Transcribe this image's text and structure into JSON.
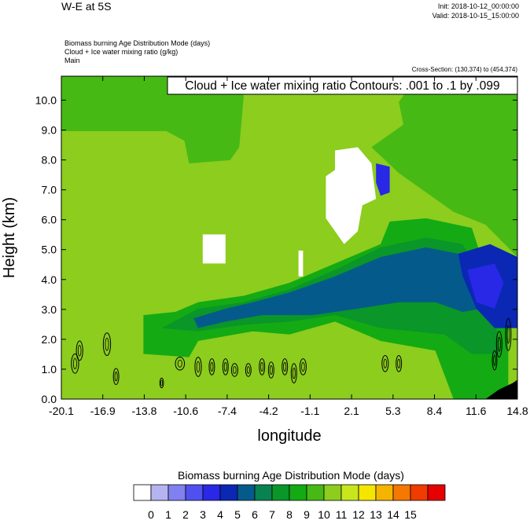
{
  "header": {
    "title": "W-E at 5S",
    "init": "Init: 2018-10-12_00:00:00",
    "valid": "Valid: 2018-10-15_15:00:00",
    "field_1": "Biomass burning Age Distribution Mode   (days)",
    "field_2": "Cloud + Ice water mixing ratio   (g/kg)",
    "field_3": "Main",
    "cross_section": "Cross-Section: (130,374) to (454,374)"
  },
  "chart_data": {
    "type": "heatmap",
    "title": "",
    "contour_label": "Cloud + Ice water mixing ratio Contours: .001 to .1 by .099",
    "xlabel": "longitude",
    "ylabel": "Height (km)",
    "x_ticks": [
      "-20.1",
      "-16.9",
      "-13.8",
      "-10.6",
      "-7.4",
      "-4.2",
      "-1.1",
      "2.1",
      "5.3",
      "8.4",
      "11.6",
      "14.8"
    ],
    "y_ticks": [
      "0.0",
      "1.0",
      "2.0",
      "3.0",
      "4.0",
      "5.0",
      "6.0",
      "7.0",
      "8.0",
      "9.0",
      "10.0"
    ],
    "xlim": [
      -20.1,
      14.8
    ],
    "ylim": [
      0,
      10.8
    ],
    "colorbar": {
      "title": "Biomass burning Age Distribution Mode  (days)",
      "labels": [
        "0",
        "1",
        "2",
        "3",
        "4",
        "5",
        "6",
        "7",
        "8",
        "9",
        "10",
        "11",
        "12",
        "13",
        "14",
        "15"
      ],
      "colors": [
        "#ffffff",
        "#b4b4f0",
        "#8080f0",
        "#5050f0",
        "#2828e6",
        "#0a28b4",
        "#055a8c",
        "#088250",
        "#0a9628",
        "#14aa14",
        "#46b914",
        "#8ccd1e",
        "#c8e61e",
        "#f5e600",
        "#f5b400",
        "#f57800",
        "#f03c00",
        "#e60000"
      ]
    },
    "regions_legend": "values in days (colour fill bands)"
  }
}
